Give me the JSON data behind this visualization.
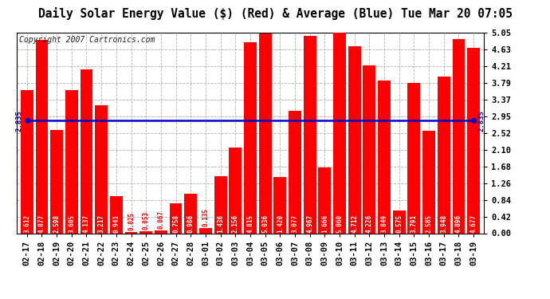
{
  "title": "Daily Solar Energy Value ($) (Red) & Average (Blue) Tue Mar 20 07:05",
  "copyright": "Copyright 2007 Cartronics.com",
  "categories": [
    "02-17",
    "02-18",
    "02-19",
    "02-20",
    "02-21",
    "02-22",
    "02-23",
    "02-24",
    "02-25",
    "02-26",
    "02-27",
    "02-28",
    "03-01",
    "03-02",
    "03-03",
    "03-04",
    "03-05",
    "03-06",
    "03-07",
    "03-08",
    "03-09",
    "03-10",
    "03-11",
    "03-12",
    "03-13",
    "03-14",
    "03-15",
    "03-16",
    "03-17",
    "03-18",
    "03-19"
  ],
  "values": [
    3.612,
    4.877,
    2.598,
    3.605,
    4.137,
    3.217,
    0.941,
    0.025,
    0.053,
    0.067,
    0.758,
    0.986,
    0.135,
    1.436,
    2.156,
    4.815,
    5.036,
    1.42,
    3.077,
    4.967,
    1.666,
    5.06,
    4.712,
    4.226,
    3.849,
    0.575,
    3.791,
    2.585,
    3.948,
    4.896,
    4.677
  ],
  "average": 2.835,
  "bar_color": "#ff0000",
  "avg_line_color": "#0000cc",
  "background_color": "#ffffff",
  "grid_color": "#b0b0b0",
  "ylim": [
    0.0,
    5.05
  ],
  "yticks": [
    0.0,
    0.42,
    0.84,
    1.26,
    1.68,
    2.1,
    2.52,
    2.95,
    3.37,
    3.79,
    4.21,
    4.63,
    5.05
  ],
  "title_fontsize": 10.5,
  "copyright_fontsize": 7,
  "bar_label_fontsize": 5.5,
  "avg_label_fontsize": 6.5,
  "tick_fontsize": 7.5
}
